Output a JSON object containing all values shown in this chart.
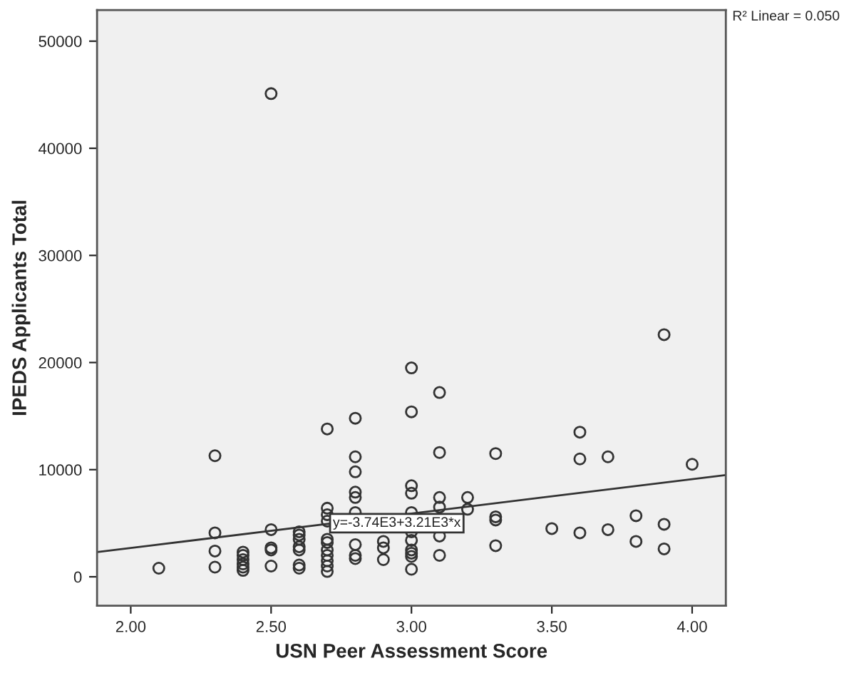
{
  "chart_data": {
    "type": "scatter",
    "xlabel": "USN Peer Assessment Score",
    "ylabel": "IPEDS Applicants Total",
    "xlim": [
      1.88,
      4.12
    ],
    "ylim": [
      -2700,
      52900
    ],
    "xticks": [
      {
        "value": 2,
        "label": "2.00"
      },
      {
        "value": 2.5,
        "label": "2.50"
      },
      {
        "value": 3,
        "label": "3.00"
      },
      {
        "value": 3.5,
        "label": "3.50"
      },
      {
        "value": 4,
        "label": "4.00"
      }
    ],
    "yticks": [
      0,
      10000,
      20000,
      30000,
      40000,
      50000
    ],
    "grid": false,
    "marker": "circle",
    "legend": false,
    "series": [
      {
        "color": "#333333",
        "x": [
          2.1,
          2.3,
          2.3,
          2.3,
          2.3,
          2.4,
          2.4,
          2.4,
          2.4,
          2.4,
          2.4,
          2.5,
          2.5,
          2.5,
          2.5,
          2.5,
          2.6,
          2.6,
          2.6,
          2.6,
          2.6,
          2.6,
          2.6,
          2.7,
          2.7,
          2.7,
          2.7,
          2.7,
          2.7,
          2.7,
          2.7,
          2.7,
          2.7,
          2.7,
          2.8,
          2.8,
          2.8,
          2.8,
          2.8,
          2.8,
          2.8,
          2.8,
          2.8,
          2.9,
          2.9,
          2.9,
          3.0,
          3.0,
          3.0,
          3.0,
          3.0,
          3.0,
          3.0,
          3.0,
          3.0,
          3.0,
          3.0,
          3.1,
          3.1,
          3.1,
          3.1,
          3.1,
          3.1,
          3.2,
          3.2,
          3.3,
          3.3,
          3.3,
          3.3,
          3.5,
          3.6,
          3.6,
          3.6,
          3.7,
          3.7,
          3.8,
          3.8,
          3.9,
          3.9,
          3.9,
          4.0
        ],
        "values": [
          800,
          11300,
          4100,
          2400,
          900,
          2300,
          2000,
          1600,
          1200,
          900,
          600,
          45100,
          4400,
          2700,
          2500,
          1000,
          4200,
          3900,
          3500,
          2800,
          2500,
          1100,
          800,
          13800,
          6400,
          5800,
          5200,
          3500,
          3200,
          2500,
          2000,
          1500,
          1000,
          500,
          14800,
          11200,
          9800,
          7900,
          7400,
          6000,
          3000,
          2000,
          1700,
          3300,
          2700,
          1600,
          19500,
          15400,
          8500,
          7800,
          6000,
          4200,
          3400,
          2500,
          2200,
          1900,
          700,
          17200,
          11600,
          7400,
          6500,
          3800,
          2000,
          7400,
          6300,
          11500,
          5600,
          5300,
          2900,
          4500,
          13500,
          11000,
          4100,
          11200,
          4400,
          5700,
          3300,
          22600,
          4900,
          2600,
          10500
        ]
      },
      {
        "type": "line",
        "color": "#333333",
        "marker": "none",
        "x": [
          1.88,
          4.12
        ],
        "values": [
          2300,
          9500
        ]
      }
    ],
    "annotations": [
      {
        "text": "y=-3.74E3+3.21E3*x",
        "x": 2.72,
        "y": 5000
      },
      "R² Linear = 0.050"
    ]
  }
}
